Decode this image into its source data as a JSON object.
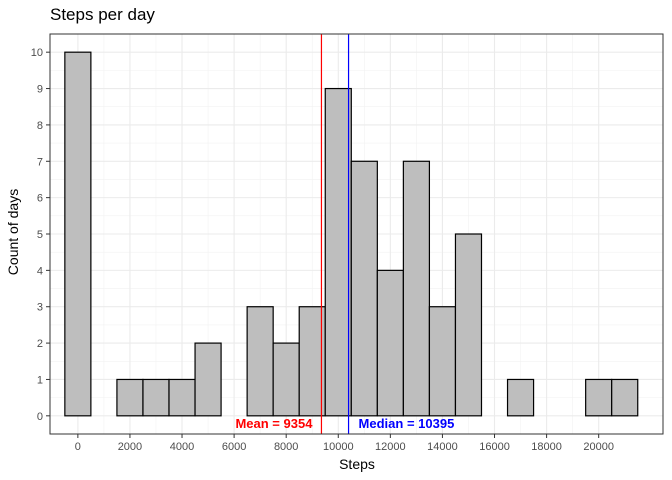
{
  "chart_data": {
    "type": "bar",
    "title": "Steps per day",
    "xlabel": "Steps",
    "ylabel": "Count of days",
    "xlim": [
      -1070,
      22470
    ],
    "ylim": [
      -0.5,
      10.5
    ],
    "bin_width": 1000,
    "bin_centers": [
      0,
      1000,
      2000,
      3000,
      4000,
      5000,
      6000,
      7000,
      8000,
      9000,
      10000,
      11000,
      12000,
      13000,
      14000,
      15000,
      16000,
      17000,
      18000,
      19000,
      20000,
      21000
    ],
    "values": [
      10,
      0,
      1,
      1,
      1,
      2,
      0,
      3,
      2,
      3,
      9,
      7,
      4,
      7,
      3,
      5,
      0,
      1,
      0,
      0,
      1,
      1
    ],
    "x_ticks": [
      "0",
      "2000",
      "4000",
      "6000",
      "8000",
      "10000",
      "12000",
      "14000",
      "16000",
      "18000",
      "20000"
    ],
    "y_ticks": [
      "0",
      "1",
      "2",
      "3",
      "4",
      "5",
      "6",
      "7",
      "8",
      "9",
      "10"
    ],
    "grid": true,
    "bar_fill": "#bebebe",
    "bar_outline": "#000000",
    "lines": [
      {
        "label": "Mean = ",
        "value": 9354,
        "value_text": "9354",
        "color": "#ff0000"
      },
      {
        "label": "Median = ",
        "value": 10395,
        "value_text": "10395",
        "color": "#0000ff"
      }
    ]
  }
}
